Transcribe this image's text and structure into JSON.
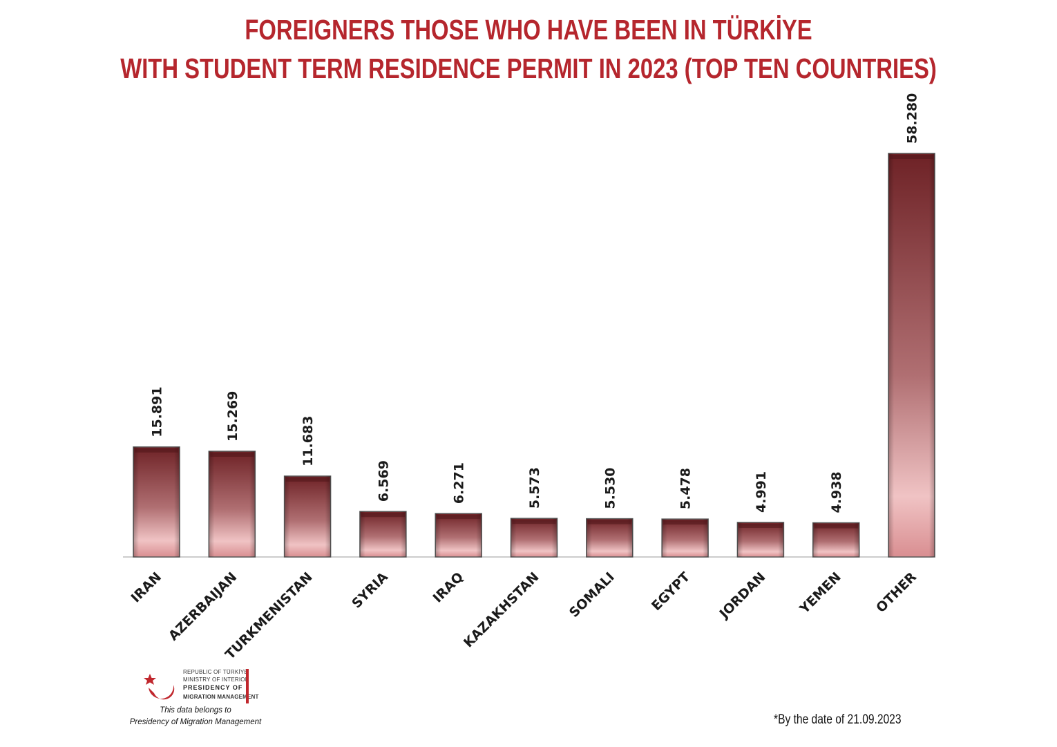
{
  "title_line1": "FOREIGNERS THOSE WHO HAVE BEEN IN TÜRKİYE",
  "title_line2": "WITH STUDENT TERM RESIDENCE PERMIT IN 2023 (TOP TEN COUNTRIES)",
  "logo": {
    "line1": "REPUBLIC OF TÜRKİYE",
    "line2": "MINISTRY OF INTERIOR",
    "line3": "PRESIDENCY OF",
    "line4": "MIGRATION MANAGEMENT"
  },
  "credit_line1": "This data belongs to",
  "credit_line2": "Presidency of Migration Management",
  "footnote": "*By the date of  21.09.2023",
  "colors": {
    "title": "#b5262d",
    "bar_dark": "#7a2e31",
    "bar_light": "#f0bfc0"
  },
  "chart_data": {
    "type": "bar",
    "title": "FOREIGNERS THOSE WHO HAVE BEEN IN TÜRKİYE WITH STUDENT TERM RESIDENCE PERMIT IN 2023 (TOP TEN COUNTRIES)",
    "categories": [
      "IRAN",
      "AZERBAIJAN",
      "TURKMENISTAN",
      "SYRIA",
      "IRAQ",
      "KAZAKHSTAN",
      "SOMALI",
      "EGYPT",
      "JORDAN",
      "YEMEN",
      "OTHER"
    ],
    "values": [
      15891,
      15269,
      11683,
      6569,
      6271,
      5573,
      5530,
      5478,
      4991,
      4938,
      58280
    ],
    "value_labels": [
      "15.891",
      "15.269",
      "11.683",
      "6.569",
      "6.271",
      "5.573",
      "5.530",
      "5.478",
      "4.991",
      "4.938",
      "58.280"
    ],
    "xlabel": "",
    "ylabel": "",
    "ylim": [
      0,
      58280
    ],
    "grid": false,
    "legend": "none"
  }
}
